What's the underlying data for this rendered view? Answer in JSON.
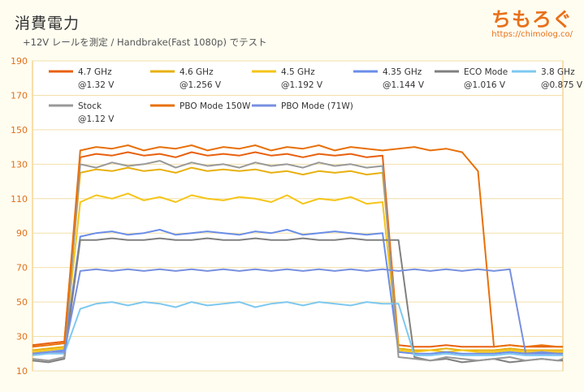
{
  "header": {
    "title": "消費電力",
    "subtitle": "+12V レールを測定 / Handbrake(Fast 1080p) でテスト",
    "brand": "ちもろぐ",
    "brand_url": "https://chimolog.co/"
  },
  "chart_data": {
    "type": "line",
    "title": "消費電力",
    "subtitle": "+12V レールを測定 / Handbrake(Fast 1080p) でテスト",
    "xlabel": "",
    "ylabel": "",
    "ylim": [
      10,
      190
    ],
    "yticks": [
      10,
      30,
      50,
      70,
      90,
      110,
      130,
      150,
      170,
      190
    ],
    "grid": true,
    "legend_position": "top",
    "x": [
      0,
      3,
      6,
      9,
      12,
      15,
      18,
      21,
      24,
      27,
      30,
      33,
      36,
      39,
      42,
      45,
      48,
      51,
      54,
      57,
      60,
      63,
      66,
      69,
      72,
      75,
      78,
      81,
      84,
      87,
      90,
      93,
      96,
      99,
      100
    ],
    "series": [
      {
        "name": "4.7 GHz\n@1.32 V",
        "color": "#e8600e",
        "values": [
          25,
          26,
          27,
          134,
          136,
          135,
          137,
          135,
          136,
          134,
          137,
          135,
          136,
          135,
          137,
          135,
          136,
          134,
          136,
          135,
          136,
          134,
          135,
          25,
          24,
          24,
          25,
          24,
          24,
          24,
          25,
          24,
          24,
          24,
          24
        ]
      },
      {
        "name": "4.6 GHz\n@1.256 V",
        "color": "#e8b00e",
        "values": [
          22,
          23,
          24,
          125,
          127,
          126,
          128,
          126,
          127,
          125,
          128,
          126,
          127,
          126,
          127,
          125,
          126,
          124,
          126,
          125,
          126,
          124,
          125,
          23,
          22,
          22,
          23,
          22,
          22,
          22,
          23,
          22,
          22,
          22,
          22
        ]
      },
      {
        "name": "4.5 GHz\n@1.192 V",
        "color": "#f5c518",
        "values": [
          21,
          22,
          23,
          108,
          112,
          110,
          113,
          109,
          111,
          108,
          112,
          110,
          109,
          111,
          110,
          108,
          112,
          107,
          110,
          109,
          111,
          107,
          108,
          22,
          21,
          22,
          21,
          22,
          21,
          21,
          22,
          21,
          21,
          21,
          21
        ]
      },
      {
        "name": "4.35 GHz\n@1.144 V",
        "color": "#6a8de8",
        "values": [
          20,
          21,
          22,
          88,
          90,
          91,
          89,
          90,
          92,
          89,
          90,
          91,
          90,
          89,
          91,
          90,
          92,
          89,
          90,
          91,
          90,
          89,
          90,
          21,
          20,
          20,
          21,
          20,
          20,
          20,
          21,
          20,
          20,
          20,
          20
        ]
      },
      {
        "name": "ECO Mode\n@1.016 V",
        "color": "#808080",
        "values": [
          16,
          15,
          17,
          86,
          86,
          87,
          86,
          86,
          87,
          86,
          86,
          87,
          86,
          86,
          87,
          86,
          86,
          87,
          86,
          86,
          87,
          86,
          86,
          86,
          18,
          16,
          17,
          15,
          16,
          17,
          15,
          16,
          17,
          16,
          16
        ]
      },
      {
        "name": "3.8 GHz\n@0.875 V",
        "color": "#7ec8f0",
        "values": [
          19,
          20,
          20,
          46,
          49,
          50,
          48,
          50,
          49,
          47,
          50,
          48,
          49,
          50,
          47,
          49,
          50,
          48,
          50,
          49,
          48,
          50,
          49,
          49,
          19,
          19,
          20,
          19,
          19,
          19,
          20,
          19,
          19,
          19,
          19
        ]
      },
      {
        "name": "Stock\n@1.12 V",
        "color": "#999999",
        "values": [
          17,
          16,
          18,
          130,
          128,
          131,
          129,
          130,
          132,
          128,
          131,
          129,
          130,
          128,
          131,
          129,
          130,
          128,
          131,
          129,
          130,
          128,
          129,
          18,
          17,
          16,
          18,
          17,
          16,
          17,
          18,
          16,
          17,
          16,
          17
        ]
      },
      {
        "name": "PBO Mode 150W",
        "color": "#e8700a",
        "values": [
          24,
          25,
          26,
          138,
          140,
          139,
          141,
          138,
          140,
          139,
          141,
          138,
          140,
          139,
          141,
          138,
          140,
          139,
          141,
          138,
          140,
          139,
          138,
          139,
          140,
          138,
          139,
          137,
          126,
          24,
          25,
          24,
          25,
          24,
          24
        ]
      },
      {
        "name": "PBO Mode (71W)",
        "color": "#7890e0",
        "values": [
          20,
          21,
          21,
          68,
          69,
          68,
          69,
          68,
          69,
          68,
          69,
          68,
          69,
          68,
          69,
          68,
          69,
          68,
          69,
          68,
          69,
          68,
          69,
          68,
          69,
          68,
          69,
          68,
          69,
          68,
          69,
          20,
          21,
          20,
          20
        ]
      }
    ]
  }
}
